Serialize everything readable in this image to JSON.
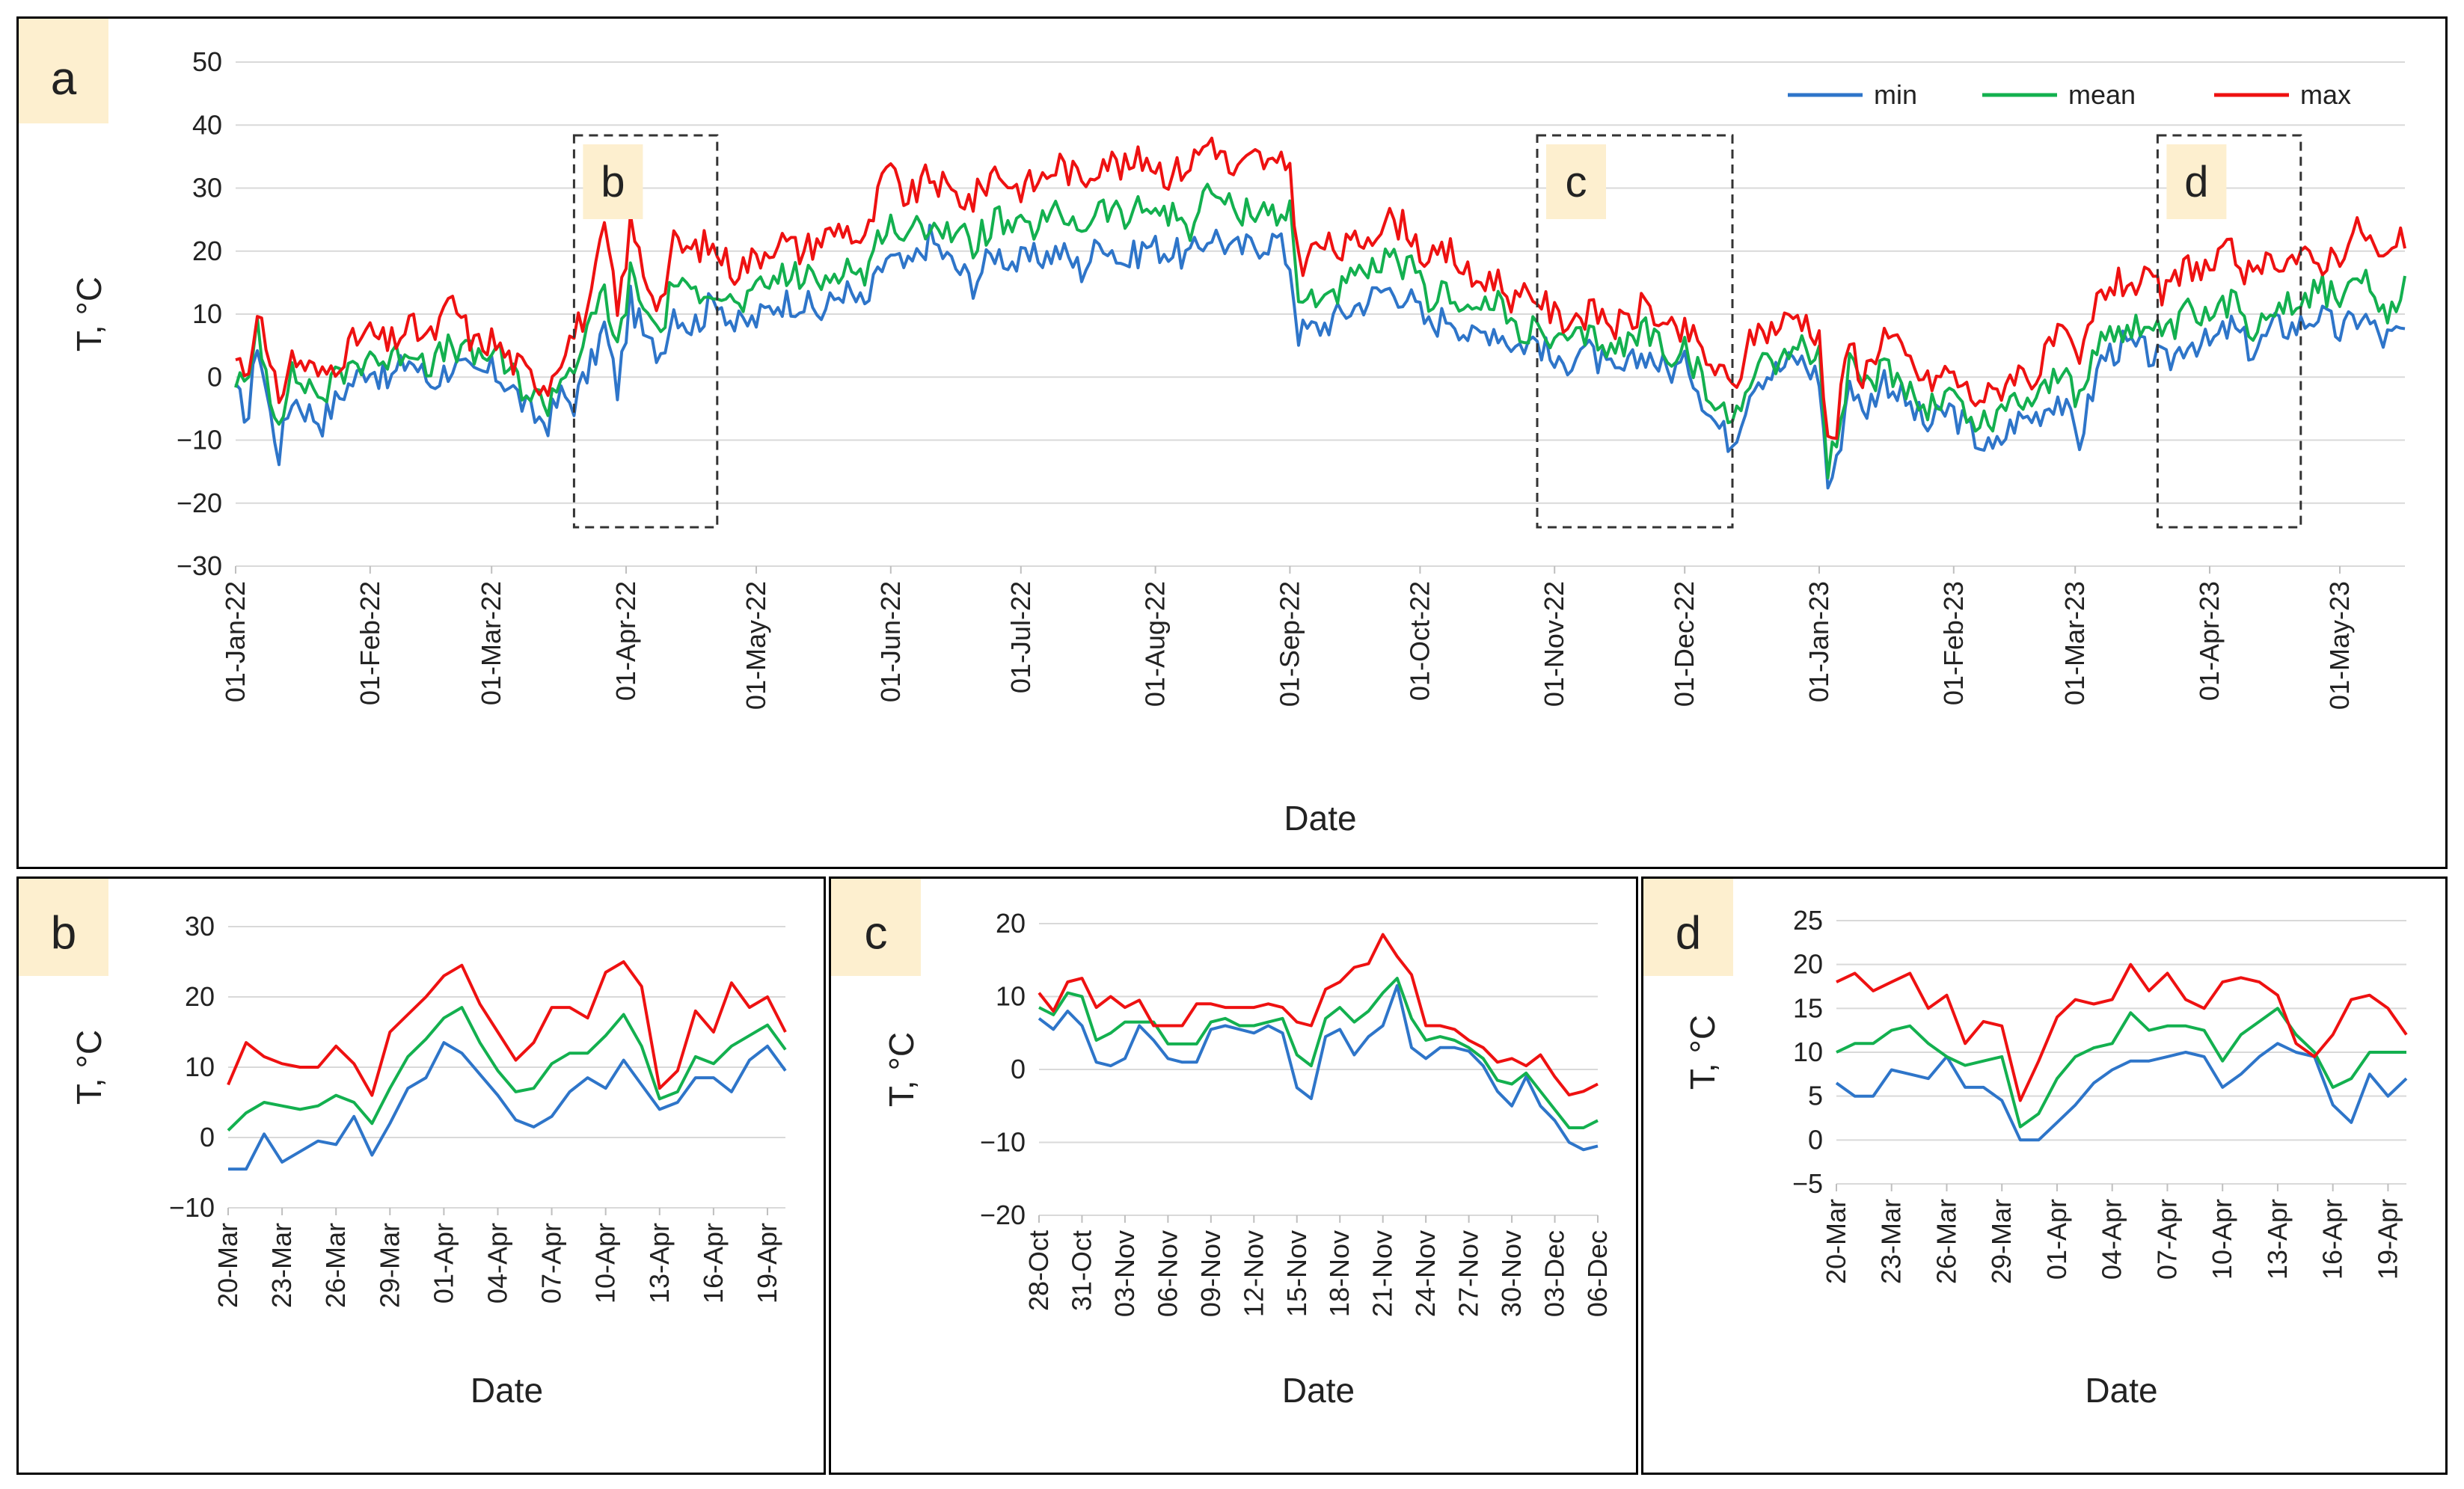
{
  "figure": {
    "description_none": true
  },
  "colors": {
    "min": "#2e75c9",
    "mean": "#13b04f",
    "max": "#ee1111",
    "grid": "#d9d9d9",
    "label_bg": "#fdefcf",
    "box": "#333333"
  },
  "chart_data": [
    {
      "id": "a",
      "panel_label": "a",
      "type": "line",
      "xlabel": "Date",
      "ylabel": "T, °C",
      "ylim": [
        -30,
        50
      ],
      "yticks": [
        -30,
        -20,
        -10,
        0,
        10,
        20,
        30,
        40,
        50
      ],
      "x_range_days": [
        0,
        500
      ],
      "x_tick_labels": [
        "01-Jan-22",
        "01-Feb-22",
        "01-Mar-22",
        "01-Apr-22",
        "01-May-22",
        "01-Jun-22",
        "01-Jul-22",
        "01-Aug-22",
        "01-Sep-22",
        "01-Oct-22",
        "01-Nov-22",
        "01-Dec-22",
        "01-Jan-23",
        "01-Feb-23",
        "01-Mar-23",
        "01-Apr-23",
        "01-May-23"
      ],
      "x_tick_days": [
        0,
        31,
        59,
        90,
        120,
        151,
        181,
        212,
        243,
        273,
        304,
        334,
        365,
        396,
        424,
        455,
        485
      ],
      "legend": [
        "min",
        "mean",
        "max"
      ],
      "legend_position": "top-right",
      "zoom_boxes": [
        {
          "label": "b",
          "start_day": 78,
          "end_day": 111
        },
        {
          "label": "c",
          "start_day": 300,
          "end_day": 345
        },
        {
          "label": "d",
          "start_day": 443,
          "end_day": 476
        }
      ],
      "series_anchor_days": [
        0,
        3,
        5,
        8,
        10,
        13,
        16,
        20,
        25,
        28,
        31,
        35,
        40,
        45,
        50,
        55,
        59,
        63,
        68,
        72,
        75,
        78,
        82,
        85,
        88,
        91,
        95,
        98,
        101,
        105,
        108,
        111,
        115,
        120,
        125,
        130,
        135,
        140,
        145,
        150,
        155,
        160,
        165,
        170,
        175,
        180,
        185,
        190,
        195,
        200,
        205,
        210,
        215,
        220,
        225,
        230,
        235,
        240,
        243,
        245,
        250,
        255,
        260,
        265,
        270,
        275,
        280,
        285,
        290,
        295,
        300,
        305,
        310,
        315,
        318,
        322,
        325,
        330,
        335,
        340,
        343,
        345,
        350,
        355,
        360,
        365,
        367,
        369,
        372,
        375,
        380,
        385,
        390,
        395,
        400,
        405,
        410,
        415,
        420,
        425,
        430,
        435,
        440,
        445,
        450,
        455,
        460,
        465,
        470,
        475,
        480,
        485,
        490,
        495,
        500
      ],
      "series": [
        {
          "name": "min",
          "values": [
            -3,
            -6,
            6,
            -6,
            -12,
            -3,
            -5,
            -7,
            -2,
            0,
            2,
            -1,
            3,
            -1,
            2,
            0,
            1,
            -1,
            -6,
            -7,
            -3,
            -4,
            2,
            8,
            -2,
            12,
            5,
            4,
            11,
            8,
            10,
            13,
            8,
            9,
            12,
            12,
            10,
            14,
            11,
            19,
            17,
            22,
            18,
            15,
            20,
            18,
            19,
            20,
            17,
            22,
            18,
            21,
            20,
            19,
            23,
            20,
            21,
            22,
            18,
            7,
            8,
            10,
            12,
            14,
            13,
            8,
            10,
            6,
            8,
            5,
            6,
            1,
            5,
            2,
            0,
            2,
            4,
            1,
            2,
            -6,
            -9,
            -10,
            0,
            1,
            3,
            0,
            -17,
            -14,
            0,
            -6,
            0,
            -4,
            -8,
            -5,
            -9,
            -12,
            -7,
            -6,
            -3,
            -10,
            3,
            5,
            4,
            2,
            6,
            5,
            8,
            4,
            8,
            8,
            10,
            7,
            10,
            6,
            7
          ]
        },
        {
          "name": "mean",
          "values": [
            0,
            -2,
            9,
            -3,
            -6,
            0,
            -1,
            -3,
            1,
            2,
            4,
            2,
            5,
            2,
            5,
            3,
            4,
            1,
            -3,
            -4,
            0,
            2,
            8,
            14,
            4,
            16,
            10,
            7,
            16,
            12,
            15,
            14,
            11,
            13,
            16,
            16,
            15,
            18,
            16,
            25,
            22,
            25,
            23,
            21,
            25,
            23,
            24,
            26,
            24,
            27,
            25,
            27,
            26,
            24,
            30,
            26,
            27,
            26,
            26,
            12,
            13,
            14,
            16,
            18,
            18,
            12,
            14,
            10,
            12,
            8,
            7,
            5,
            6,
            6,
            4,
            6,
            8,
            4,
            4,
            -4,
            -6,
            -7,
            2,
            3,
            5,
            3,
            -14,
            -11,
            2,
            -3,
            2,
            -1,
            -5,
            -2,
            -7,
            -7,
            -3,
            -3,
            1,
            -4,
            7,
            8,
            8,
            6,
            10,
            9,
            12,
            8,
            12,
            12,
            14,
            13,
            16,
            9,
            14
          ]
        },
        {
          "name": "max",
          "values": [
            3,
            1,
            12,
            0,
            -3,
            3,
            2,
            0,
            4,
            6,
            7,
            5,
            8,
            6,
            12,
            5,
            6,
            3,
            0,
            -1,
            4,
            7,
            12,
            24,
            10,
            24,
            15,
            12,
            21,
            20,
            21,
            20,
            17,
            19,
            22,
            20,
            22,
            24,
            21,
            33,
            28,
            32,
            29,
            28,
            33,
            30,
            31,
            34,
            31,
            35,
            33,
            35,
            32,
            34,
            38,
            32,
            35,
            33,
            34,
            18,
            21,
            20,
            22,
            25,
            24,
            18,
            20,
            15,
            16,
            12,
            13,
            9,
            10,
            10,
            8,
            9,
            12,
            7,
            7,
            2,
            0,
            -2,
            7,
            8,
            10,
            7,
            -11,
            -8,
            6,
            0,
            7,
            3,
            -1,
            1,
            -3,
            -3,
            1,
            0,
            7,
            2,
            14,
            15,
            15,
            13,
            18,
            17,
            20,
            15,
            19,
            19,
            18,
            20,
            24,
            18,
            22
          ]
        }
      ]
    },
    {
      "id": "b",
      "panel_label": "b",
      "type": "line",
      "xlabel": "Date",
      "ylabel": "T, °C",
      "ylim": [
        -10,
        30
      ],
      "yticks": [
        -10,
        0,
        10,
        20,
        30
      ],
      "x_tick_labels": [
        "20-Mar",
        "23-Mar",
        "26-Mar",
        "29-Mar",
        "01-Apr",
        "04-Apr",
        "07-Apr",
        "10-Apr",
        "13-Apr",
        "16-Apr",
        "19-Apr"
      ],
      "x_tick_index": [
        0,
        3,
        6,
        9,
        12,
        15,
        18,
        21,
        24,
        27,
        30
      ],
      "n_points": 32,
      "series": [
        {
          "name": "min",
          "values": [
            -4.5,
            -4.5,
            0.5,
            -3.5,
            -2,
            -0.5,
            -1,
            3,
            -2.5,
            2,
            7,
            8.5,
            13.5,
            12,
            9,
            6,
            2.5,
            1.5,
            3,
            6.5,
            8.5,
            7,
            11,
            7.5,
            4,
            5,
            8.5,
            8.5,
            6.5,
            11,
            13,
            9.5
          ]
        },
        {
          "name": "mean",
          "values": [
            1,
            3.5,
            5,
            4.5,
            4,
            4.5,
            6,
            5,
            2,
            7,
            11.5,
            14,
            17,
            18.5,
            13.5,
            9.5,
            6.5,
            7,
            10.5,
            12,
            12,
            14.5,
            17.5,
            13,
            5.5,
            6.5,
            11.5,
            10.5,
            13,
            14.5,
            16,
            12.5
          ]
        },
        {
          "name": "max",
          "values": [
            7.5,
            13.5,
            11.5,
            10.5,
            10,
            10,
            13,
            10.5,
            6,
            15,
            17.5,
            20,
            23,
            24.5,
            19,
            15,
            11,
            13.5,
            18.5,
            18.5,
            17,
            23.5,
            25,
            21.5,
            7,
            9.5,
            18,
            15,
            22,
            18.5,
            20,
            15
          ]
        }
      ]
    },
    {
      "id": "c",
      "panel_label": "c",
      "type": "line",
      "xlabel": "Date",
      "ylabel": "T, °C",
      "ylim": [
        -20,
        20
      ],
      "yticks": [
        -20,
        -10,
        0,
        10,
        20
      ],
      "x_tick_labels": [
        "28-Oct",
        "31-Oct",
        "03-Nov",
        "06-Nov",
        "09-Nov",
        "12-Nov",
        "15-Nov",
        "18-Nov",
        "21-Nov",
        "24-Nov",
        "27-Nov",
        "30-Nov",
        "03-Dec",
        "06-Dec"
      ],
      "x_tick_index": [
        0,
        3,
        6,
        9,
        12,
        15,
        18,
        21,
        24,
        27,
        30,
        33,
        36,
        39
      ],
      "n_points": 40,
      "series": [
        {
          "name": "min",
          "values": [
            7,
            5.5,
            8,
            6,
            1,
            0.5,
            1.5,
            6,
            4,
            1.5,
            1,
            1,
            5.5,
            6,
            5.5,
            5,
            6,
            5,
            -2.5,
            -4,
            4.5,
            5.5,
            2,
            4.5,
            6,
            11.5,
            3,
            1.5,
            3,
            3,
            2.5,
            0.5,
            -3,
            -5,
            -1,
            -5,
            -7,
            -10,
            -11,
            -10.5
          ]
        },
        {
          "name": "mean",
          "values": [
            8.5,
            7.5,
            10.5,
            10,
            4,
            5,
            6.5,
            6.5,
            6.5,
            3.5,
            3.5,
            3.5,
            6.5,
            7,
            6,
            6,
            6.5,
            7,
            2,
            0.5,
            7,
            8.5,
            6.5,
            8,
            10.5,
            12.5,
            7,
            4,
            4.5,
            4,
            3,
            1.5,
            -1.5,
            -2,
            -0.5,
            -3,
            -5.5,
            -8,
            -8,
            -7
          ]
        },
        {
          "name": "max",
          "values": [
            10.5,
            8,
            12,
            12.5,
            8.5,
            10,
            8.5,
            9.5,
            6,
            6,
            6,
            9,
            9,
            8.5,
            8.5,
            8.5,
            9,
            8.5,
            6.5,
            6,
            11,
            12,
            14,
            14.5,
            18.5,
            15.5,
            13,
            6,
            6,
            5.5,
            4,
            3,
            1,
            1.5,
            0.5,
            2,
            -1,
            -3.5,
            -3,
            -2
          ]
        }
      ]
    },
    {
      "id": "d",
      "panel_label": "d",
      "type": "line",
      "xlabel": "Date",
      "ylabel": "T, °C",
      "ylim": [
        -5,
        25
      ],
      "yticks": [
        -5,
        0,
        5,
        10,
        15,
        20,
        25
      ],
      "x_tick_labels": [
        "20-Mar",
        "23-Mar",
        "26-Mar",
        "29-Mar",
        "01-Apr",
        "04-Apr",
        "07-Apr",
        "10-Apr",
        "13-Apr",
        "16-Apr",
        "19-Apr"
      ],
      "x_tick_index": [
        0,
        3,
        6,
        9,
        12,
        15,
        18,
        21,
        24,
        27,
        30
      ],
      "n_points": 32,
      "series": [
        {
          "name": "min",
          "values": [
            6.5,
            5,
            5,
            8,
            7.5,
            7,
            9.5,
            6,
            6,
            4.5,
            0,
            0,
            2,
            4,
            6.5,
            8,
            9,
            9,
            9.5,
            10,
            9.5,
            6,
            7.5,
            9.5,
            11,
            10,
            9.5,
            4,
            2,
            7.5,
            5,
            7
          ]
        },
        {
          "name": "mean",
          "values": [
            10,
            11,
            11,
            12.5,
            13,
            11,
            9.5,
            8.5,
            9,
            9.5,
            1.5,
            3,
            7,
            9.5,
            10.5,
            11,
            14.5,
            12.5,
            13,
            13,
            12.5,
            9,
            12,
            13.5,
            15,
            12,
            10,
            6,
            7,
            10,
            10,
            10
          ]
        },
        {
          "name": "max",
          "values": [
            18,
            19,
            17,
            18,
            19,
            15,
            16.5,
            11,
            13.5,
            13,
            4.5,
            9,
            14,
            16,
            15.5,
            16,
            20,
            17,
            19,
            16,
            15,
            18,
            18.5,
            18,
            16.5,
            11,
            9.5,
            12,
            16,
            16.5,
            15,
            12
          ]
        }
      ]
    }
  ]
}
